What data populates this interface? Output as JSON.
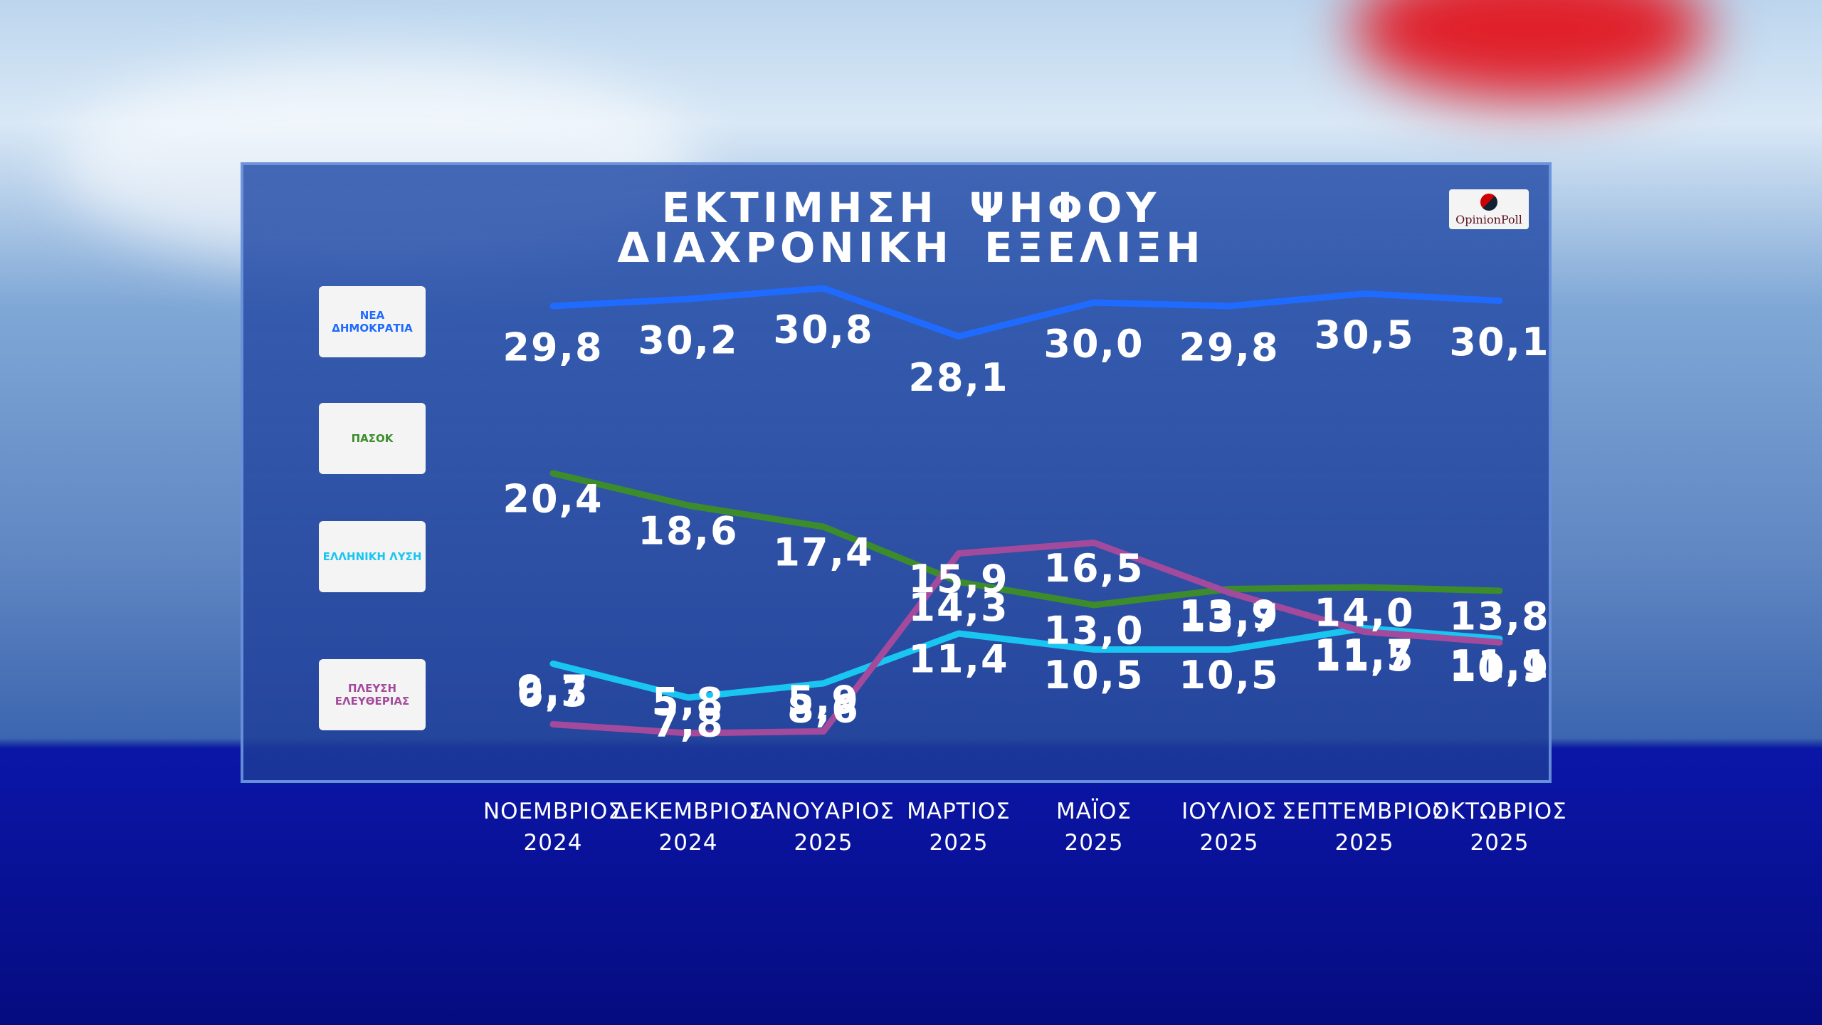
{
  "chart_data": {
    "type": "line",
    "title": "ΕΚΤΙΜΗΣΗ ΨΗΦΟΥ",
    "subtitle": "ΔΙΑΧΡΟΝΙΚΗ ΕΞΕΛΙΞΗ",
    "source": "OpinionPoll",
    "categories": [
      "ΝΟΕΜΒΡΙΟΣ\n2024",
      "ΔΕΚΕΜΒΡΙΟΣ\n2024",
      "ΙΑΝΟΥΑΡΙΟΣ\n2025",
      "ΜΑΡΤΙΟΣ\n2025",
      "ΜΑΪΟΣ\n2025",
      "ΙΟΥΛΙΟΣ\n2025",
      "ΣΕΠΤΕΜΒΡΙΟΣ\n2025",
      "ΟΚΤΩΒΡΙΟΣ\n2025"
    ],
    "series": [
      {
        "name": "ΝΕΑ ΔΗΜΟΚΡΑΤΙΑ",
        "color": "#1f6bff",
        "values": [
          29.8,
          30.2,
          30.8,
          28.1,
          30.0,
          29.8,
          30.5,
          30.1
        ],
        "value_labels": [
          "29,8",
          "30,2",
          "30,8",
          "28,1",
          "30,0",
          "29,8",
          "30,5",
          "30,1"
        ]
      },
      {
        "name": "ΠΑΣΟΚ",
        "color": "#3d8c2c",
        "values": [
          20.4,
          18.6,
          17.4,
          14.3,
          13.0,
          13.9,
          14.0,
          13.8
        ],
        "value_labels": [
          "20,4",
          "18,6",
          "17,4",
          "14,3",
          "13,0",
          "13,9",
          "14,0",
          "13,8"
        ]
      },
      {
        "name": "ΕΛΛΗΝΙΚΗ ΛΥΣΗ",
        "color": "#19c6f2",
        "values": [
          9.7,
          7.8,
          8.6,
          11.4,
          10.5,
          10.5,
          11.7,
          11.1
        ],
        "value_labels": [
          "9,7",
          "7,8",
          "8,6",
          "11,4",
          "10,5",
          "10,5",
          "11,7",
          "11,1"
        ]
      },
      {
        "name": "ΠΛΕΥΣΗ ΕΛΕΥΘΕΡΙΑΣ",
        "color": "#a34a9c",
        "values": [
          6.3,
          5.8,
          5.9,
          15.9,
          16.5,
          13.7,
          11.5,
          10.9
        ],
        "value_labels": [
          "6,3",
          "5,8",
          "5,9",
          "15,9",
          "16,5",
          "13,7",
          "11,5",
          "10,9"
        ]
      }
    ]
  }
}
